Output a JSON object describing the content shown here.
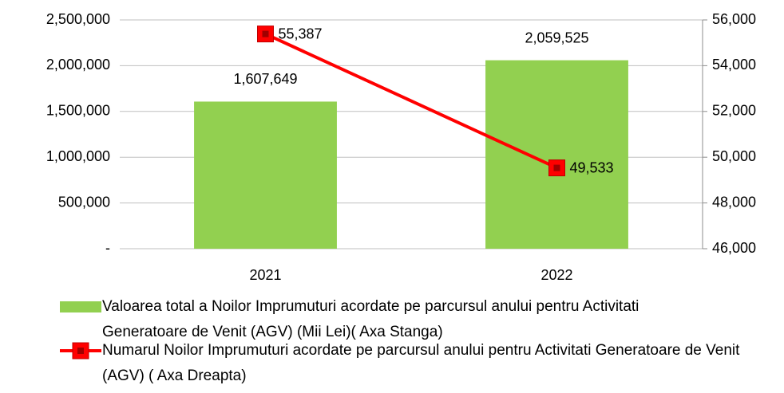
{
  "chart_data": {
    "type": "bar",
    "categories": [
      "2021",
      "2022"
    ],
    "series": [
      {
        "name": "Valoarea total a Noilor Imprumuturi acordate pe parcursul anului pentru Activitati Generatoare de Venit (AGV) (Mii Lei)( Axa Stanga)",
        "type": "bar",
        "color": "#92d050",
        "values": [
          1607649,
          2059525
        ],
        "value_labels": [
          "1,607,649",
          "2,059,525"
        ]
      },
      {
        "name": "Numarul  Noilor Imprumuturi acordate pe parcursul anului pentru Activitati Generatoare de Venit (AGV) ( Axa Dreapta)",
        "type": "line",
        "axis": "y2",
        "color": "#ff0000",
        "values": [
          55387,
          49533
        ],
        "value_labels": [
          "55,387",
          "49,533"
        ]
      }
    ],
    "ylim": [
      0,
      2500000
    ],
    "yticks": [
      {
        "value": 0,
        "label": "-"
      },
      {
        "value": 500000,
        "label": "500,000"
      },
      {
        "value": 1000000,
        "label": "1,000,000"
      },
      {
        "value": 1500000,
        "label": "1,500,000"
      },
      {
        "value": 2000000,
        "label": "2,000,000"
      },
      {
        "value": 2500000,
        "label": "2,500,000"
      }
    ],
    "y2lim": [
      46000,
      56000
    ],
    "y2ticks": [
      {
        "value": 46000,
        "label": "46,000"
      },
      {
        "value": 48000,
        "label": "48,000"
      },
      {
        "value": 50000,
        "label": "50,000"
      },
      {
        "value": 52000,
        "label": "52,000"
      },
      {
        "value": 54000,
        "label": "54,000"
      },
      {
        "value": 56000,
        "label": "56,000"
      }
    ],
    "grid": true,
    "legend": "bottom"
  }
}
